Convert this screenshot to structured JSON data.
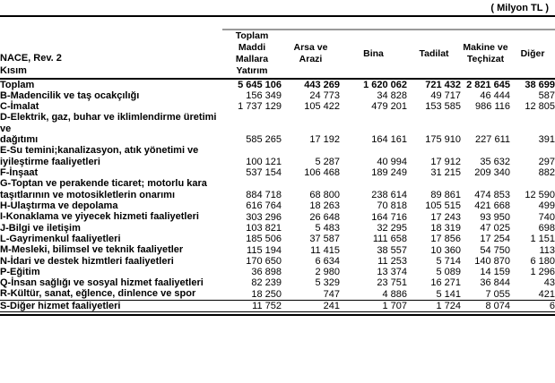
{
  "unit_label": "( Milyon TL )",
  "table": {
    "row_header_line1": "NACE, Rev. 2",
    "row_header_line2": "Kısım",
    "columns": [
      [
        "Toplam",
        "Maddi",
        "Mallara",
        "Yatırım"
      ],
      [
        "Arsa ve",
        "Arazi"
      ],
      [
        "Bina"
      ],
      [
        "Tadilat"
      ],
      [
        "Makine ve",
        "Teçhizat"
      ],
      [
        "Diğer"
      ]
    ],
    "rows": [
      {
        "label_lines": [
          "Toplam"
        ],
        "values": [
          "5 645 106",
          "443 269",
          "1 620 062",
          "721 432",
          "2 821 645",
          "38 699"
        ],
        "total": true
      },
      {
        "label_lines": [
          "B-Madencilik ve taş ocakçılığı"
        ],
        "values": [
          "156 349",
          "24 773",
          "34 828",
          "49 717",
          "46 444",
          "587"
        ]
      },
      {
        "label_lines": [
          "C-İmalat"
        ],
        "values": [
          "1 737 129",
          "105 422",
          "479 201",
          "153 585",
          "986 116",
          "12 805"
        ]
      },
      {
        "label_lines": [
          "D-Elektrik, gaz, buhar ve iklimlendirme üretimi ve",
          "dağıtımı"
        ],
        "values": [
          "585 265",
          "17 192",
          "164 161",
          "175 910",
          "227 611",
          "391"
        ]
      },
      {
        "label_lines": [
          "E-Su temini;kanalizasyon, atık yönetimi ve",
          "iyileştirme faaliyetleri"
        ],
        "values": [
          "100 121",
          "5 287",
          "40 994",
          "17 912",
          "35 632",
          "297"
        ]
      },
      {
        "label_lines": [
          "F-İnşaat"
        ],
        "values": [
          "537 154",
          "106 468",
          "189 249",
          "31 215",
          "209 340",
          "882"
        ]
      },
      {
        "label_lines": [
          "G-Toptan ve perakende ticaret; motorlu kara",
          "taşıtlarının ve motosikletlerin onarımı"
        ],
        "values": [
          "884 718",
          "68 800",
          "238 614",
          "89 861",
          "474 853",
          "12 590"
        ]
      },
      {
        "label_lines": [
          "H-Ulaştırma ve depolama"
        ],
        "values": [
          "616 764",
          "18 263",
          "70 818",
          "105 515",
          "421 668",
          "499"
        ]
      },
      {
        "label_lines": [
          "I-Konaklama ve yiyecek hizmeti faaliyetleri"
        ],
        "values": [
          "303 296",
          "26 648",
          "164 716",
          "17 243",
          "93 950",
          "740"
        ]
      },
      {
        "label_lines": [
          "J-Bilgi ve iletişim"
        ],
        "values": [
          "103 821",
          "5 483",
          "32 295",
          "18 319",
          "47 025",
          "698"
        ]
      },
      {
        "label_lines": [
          "L-Gayrimenkul faaliyetleri"
        ],
        "values": [
          "185 506",
          "37 587",
          "111 658",
          "17 856",
          "17 254",
          "1 151"
        ]
      },
      {
        "label_lines": [
          "M-Mesleki, bilimsel ve teknik faaliyetler"
        ],
        "values": [
          "115 194",
          "11 415",
          "38 557",
          "10 360",
          "54 750",
          "113"
        ]
      },
      {
        "label_lines": [
          "N-İdari ve destek hizmtleri faaliyetleri"
        ],
        "values": [
          "170 650",
          "6 634",
          "11 253",
          "5 714",
          "140 870",
          "6 180"
        ]
      },
      {
        "label_lines": [
          "P-Eğitim"
        ],
        "values": [
          "36 898",
          "2 980",
          "13 374",
          "5 089",
          "14 159",
          "1 296"
        ]
      },
      {
        "label_lines": [
          "Q-İnsan sağlığı ve sosyal hizmet faaliyetleri"
        ],
        "values": [
          "82 239",
          "5 329",
          "23 751",
          "16 271",
          "36 844",
          "43"
        ]
      },
      {
        "label_lines": [
          "R-Kültür, sanat, eğlence, dinlence ve spor"
        ],
        "values": [
          "18 250",
          "747",
          "4 886",
          "5 141",
          "7 055",
          "421"
        ]
      },
      {
        "label_lines": [
          "S-Diğer hizmet faaliyetleri"
        ],
        "values": [
          "11 752",
          "241",
          "1 707",
          "1 724",
          "8 074",
          "6"
        ]
      }
    ]
  },
  "colors": {
    "text": "#000000",
    "rule_heavy": "#000000",
    "rule_light": "#9a9a9a",
    "background": "#ffffff"
  }
}
